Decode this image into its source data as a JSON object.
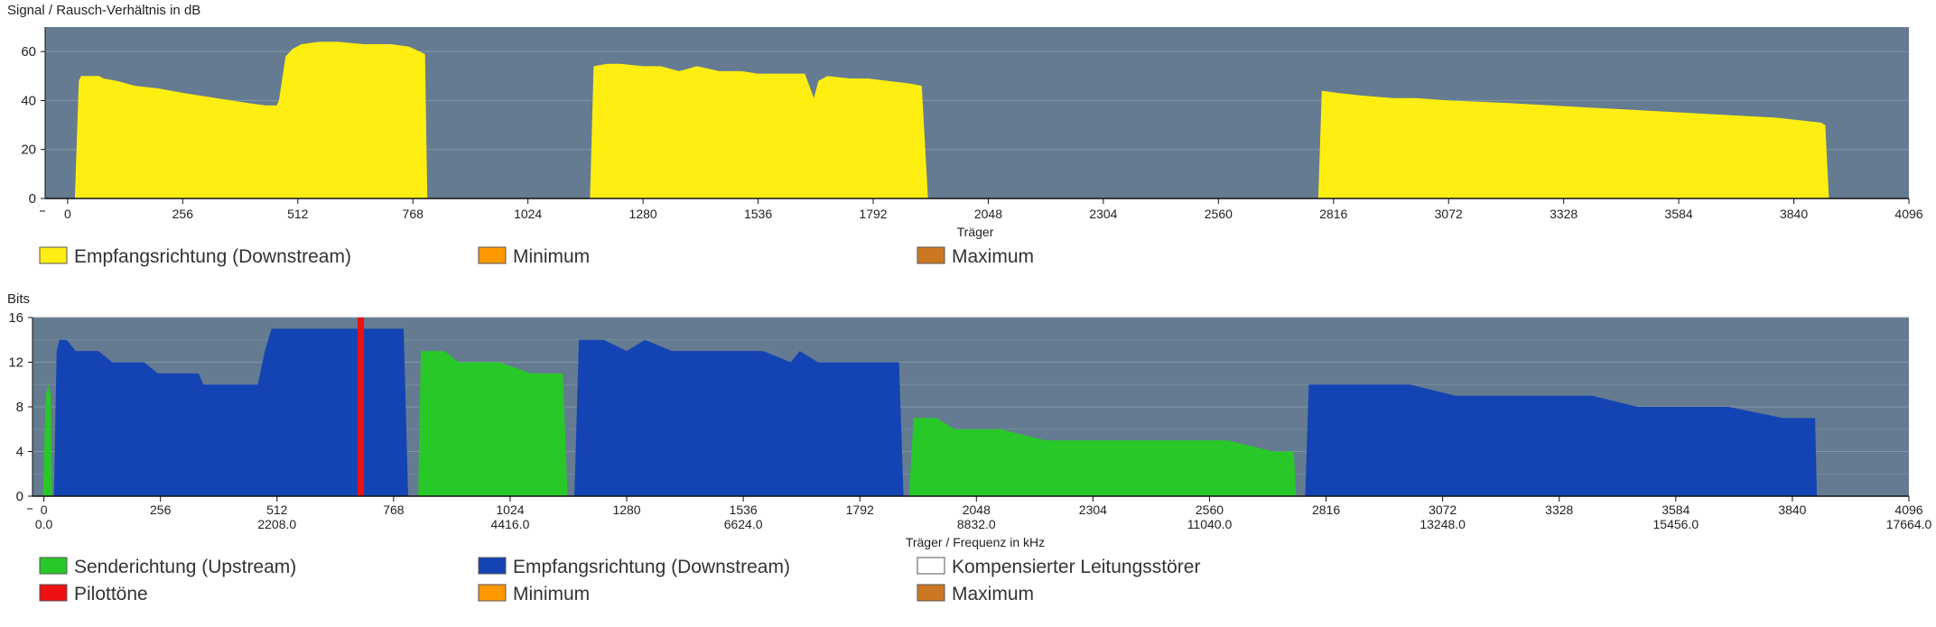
{
  "colors": {
    "plot_bg": "#647b91",
    "grid": "#8497aa",
    "snr_fill": "#ffee11",
    "upstream": "#28c828",
    "downstream": "#1444b4",
    "pilot": "#ee1111",
    "minimum": "#ff9900",
    "maximum": "#cc7722",
    "compensated": "#ffffff"
  },
  "chart_data": [
    {
      "type": "area",
      "title": "Signal / Rausch-Verhältnis in dB",
      "xlabel": "Träger",
      "ylabel": "Signal / Rausch-Verhältnis in dB",
      "xlim": [
        -50,
        4096
      ],
      "ylim": [
        0,
        70
      ],
      "xticks": [
        0,
        256,
        512,
        768,
        1024,
        1280,
        1536,
        1792,
        2048,
        2304,
        2560,
        2816,
        3072,
        3328,
        3584,
        3840,
        4096
      ],
      "xtick_labels": [
        "0",
        "256",
        "512",
        "768",
        "1024",
        "1280",
        "1536",
        "1792",
        "2048",
        "2304",
        "2560",
        "2816",
        "3072",
        "3328",
        "3584",
        "3840",
        "4096"
      ],
      "yticks": [
        0,
        20,
        40,
        60
      ],
      "ytick_labels": [
        "0",
        "20",
        "40",
        "60"
      ],
      "legend": [
        "Empfangsrichtung (Downstream)",
        "Minimum",
        "Maximum"
      ],
      "series": [
        {
          "name": "Empfangsrichtung (Downstream)",
          "band": "snr",
          "x": [
            16,
            25,
            30,
            70,
            80,
            110,
            150,
            200,
            260,
            330,
            400,
            440,
            465,
            470,
            480,
            485,
            500,
            520,
            560,
            600,
            660,
            720,
            760,
            795,
            800
          ],
          "y": [
            0,
            48,
            50,
            50,
            49,
            48,
            46,
            45,
            43,
            41,
            39,
            38,
            38,
            40,
            52,
            58,
            61,
            63,
            64,
            64,
            63,
            63,
            62,
            59,
            0
          ]
        },
        {
          "name": "",
          "band": "snr",
          "x": [
            1162,
            1170,
            1200,
            1230,
            1280,
            1320,
            1360,
            1400,
            1450,
            1500,
            1535,
            1600,
            1640,
            1650,
            1660,
            1670,
            1690,
            1740,
            1780,
            1870,
            1900,
            1914
          ],
          "y": [
            0,
            54,
            55,
            55,
            54,
            54,
            52,
            54,
            52,
            52,
            51,
            51,
            51,
            46,
            41,
            48,
            50,
            49,
            49,
            47,
            46,
            0
          ]
        },
        {
          "name": "",
          "band": "snr",
          "x": [
            2782,
            2790,
            2830,
            2880,
            2950,
            3000,
            3072,
            3200,
            3300,
            3400,
            3500,
            3600,
            3700,
            3800,
            3900,
            3910,
            3918
          ],
          "y": [
            0,
            44,
            43,
            42,
            41,
            41,
            40,
            39,
            38,
            37,
            36,
            35,
            34,
            33,
            31,
            30,
            0
          ]
        }
      ]
    },
    {
      "type": "area",
      "title": "Bits",
      "xlabel": "Träger / Frequenz in kHz",
      "ylabel": "Bits",
      "xlim": [
        -25,
        4096
      ],
      "ylim": [
        0,
        16
      ],
      "xticks": [
        0,
        256,
        512,
        768,
        1024,
        1280,
        1536,
        1792,
        2048,
        2304,
        2560,
        2816,
        3072,
        3328,
        3584,
        3840,
        4096
      ],
      "xtick_labels": [
        "0",
        "256",
        "512",
        "768",
        "1024",
        "1280",
        "1536",
        "1792",
        "2048",
        "2304",
        "2560",
        "2816",
        "3072",
        "3328",
        "3584",
        "3840",
        "4096"
      ],
      "xtick_freq_labels": [
        "0.0",
        "",
        "2208.0",
        "",
        "4416.0",
        "",
        "6624.0",
        "",
        "8832.0",
        "",
        "11040.0",
        "",
        "13248.0",
        "",
        "15456.0",
        "",
        "17664.0"
      ],
      "yticks": [
        0,
        4,
        8,
        12,
        16
      ],
      "ytick_labels": [
        "0",
        "4",
        "8",
        "12",
        "16"
      ],
      "legend": [
        "Senderichtung (Upstream)",
        "Empfangsrichtung (Downstream)",
        "Kompensierter Leitungsstörer",
        "Pilottöne",
        "Minimum",
        "Maximum"
      ],
      "pilot_tone_carrier": 696,
      "series": [
        {
          "name": "Senderichtung (Upstream)",
          "band": "upstream",
          "x": [
            -2,
            4,
            10,
            15,
            18
          ],
          "y": [
            0,
            9,
            10,
            9,
            0
          ]
        },
        {
          "name": "Empfangsrichtung (Downstream)",
          "band": "downstream",
          "x": [
            22,
            28,
            34,
            50,
            70,
            120,
            150,
            220,
            250,
            300,
            340,
            350,
            360,
            380,
            420,
            470,
            485,
            500,
            540,
            600,
            700,
            760,
            780,
            790,
            800
          ],
          "y": [
            0,
            13,
            14,
            14,
            13,
            13,
            12,
            12,
            11,
            11,
            11,
            10,
            10,
            10,
            10,
            10,
            13,
            15,
            15,
            15,
            15,
            15,
            15,
            15,
            0
          ]
        },
        {
          "name": "",
          "band": "upstream",
          "x": [
            822,
            828,
            880,
            910,
            1000,
            1070,
            1130,
            1140,
            1150
          ],
          "y": [
            0,
            13,
            13,
            12,
            12,
            11,
            11,
            11,
            0
          ]
        },
        {
          "name": "",
          "band": "downstream",
          "x": [
            1165,
            1175,
            1185,
            1230,
            1280,
            1320,
            1380,
            1420,
            1500,
            1580,
            1640,
            1660,
            1700,
            1800,
            1850,
            1878,
            1888
          ],
          "y": [
            0,
            14,
            14,
            14,
            13,
            14,
            13,
            13,
            13,
            13,
            12,
            13,
            12,
            12,
            12,
            12,
            0
          ]
        },
        {
          "name": "",
          "band": "upstream",
          "x": [
            1900,
            1910,
            1960,
            2000,
            2040,
            2100,
            2200,
            2300,
            2350,
            2500,
            2600,
            2700,
            2740,
            2745,
            2750
          ],
          "y": [
            0,
            7,
            7,
            6,
            6,
            6,
            5,
            5,
            5,
            5,
            5,
            4,
            4,
            4,
            0
          ]
        },
        {
          "name": "",
          "band": "downstream",
          "x": [
            2770,
            2778,
            2830,
            2900,
            3000,
            3100,
            3200,
            3300,
            3400,
            3500,
            3600,
            3700,
            3820,
            3880,
            3890,
            3894
          ],
          "y": [
            0,
            10,
            10,
            10,
            10,
            9,
            9,
            9,
            9,
            8,
            8,
            8,
            7,
            7,
            7,
            0
          ]
        }
      ]
    }
  ]
}
